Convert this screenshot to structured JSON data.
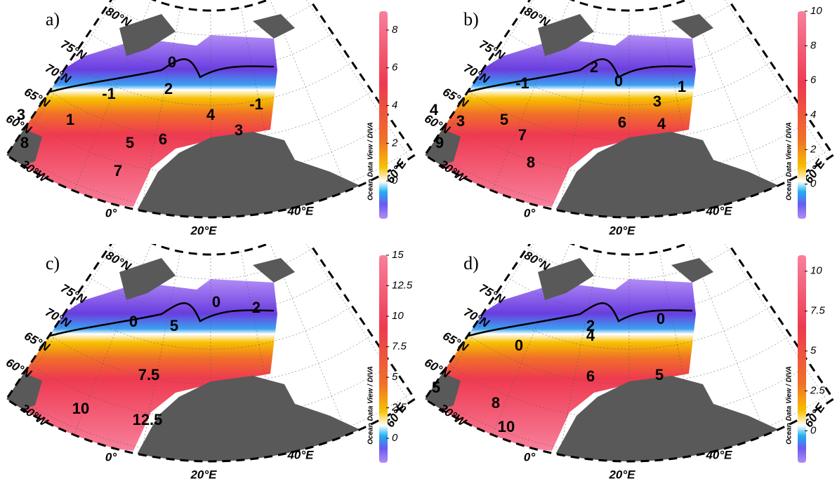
{
  "figure": {
    "colorbar_title": "Ocean Data View / DIVA",
    "lat_labels": [
      "80°N",
      "75°N",
      "70°N",
      "65°N",
      "60°N"
    ],
    "lon_labels": [
      "20°W",
      "0°",
      "20°E",
      "40°E",
      "60°E"
    ],
    "panels": [
      {
        "label": "a)",
        "contour_labels": [
          0,
          -1,
          2,
          -1,
          3,
          1,
          4,
          3,
          8,
          5,
          6,
          7
        ],
        "colorbar": {
          "range": [
            -2,
            9
          ],
          "ticks": [
            0,
            2,
            4,
            6,
            8
          ]
        }
      },
      {
        "label": "b)",
        "contour_labels": [
          -1,
          2,
          0,
          1,
          4,
          3,
          5,
          7,
          3,
          6,
          4,
          9,
          8
        ],
        "colorbar": {
          "range": [
            -2,
            10
          ],
          "ticks": [
            0,
            2,
            4,
            6,
            8,
            10
          ]
        }
      },
      {
        "label": "c)",
        "contour_labels": [
          0,
          5,
          0,
          2,
          7.5,
          10,
          12.5
        ],
        "colorbar": {
          "range": [
            -2,
            15
          ],
          "ticks": [
            0,
            2.5,
            5,
            7.5,
            10,
            12.5,
            15
          ]
        }
      },
      {
        "label": "d)",
        "contour_labels": [
          2,
          0,
          0,
          4,
          6,
          5,
          5,
          8,
          10
        ],
        "colorbar": {
          "range": [
            -2,
            11
          ],
          "ticks": [
            0,
            2.5,
            5,
            7.5,
            10
          ]
        }
      }
    ]
  }
}
